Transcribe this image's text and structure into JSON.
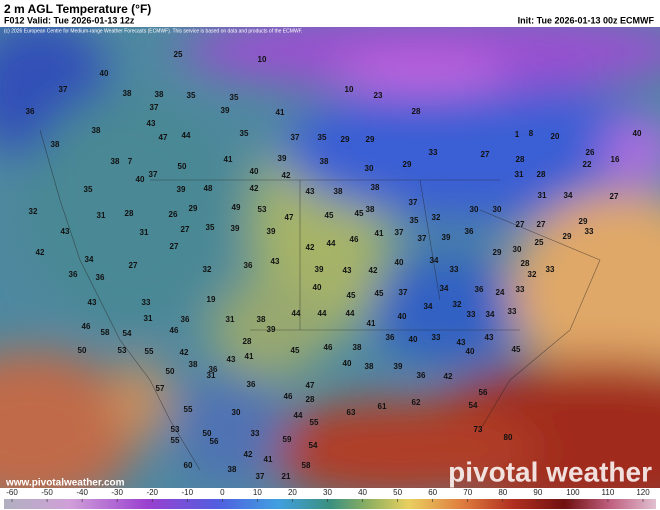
{
  "header": {
    "title": "2 m AGL Temperature (°F)",
    "valid": "F012 Valid: Tue 2026-01-13 12z",
    "init": "Init: Tue 2026-01-13 00z ECMWF",
    "credit": "(c) 2026 European Centre for Medium-range Weather Forecasts (ECMWF). This service is based on data and products of the ECMWF."
  },
  "map": {
    "temperatures": [
      25,
      10,
      40,
      37,
      38,
      38,
      35,
      35,
      10,
      23,
      28,
      37,
      36,
      43,
      39,
      38,
      47,
      44,
      41,
      35,
      37,
      35,
      29,
      29,
      33,
      27,
      28,
      20,
      26,
      40,
      1,
      8,
      38,
      38,
      7,
      37,
      50,
      41,
      40,
      39,
      42,
      38,
      30,
      29,
      31,
      28,
      22,
      16,
      35,
      40,
      39,
      48,
      42,
      43,
      38,
      38,
      37,
      31,
      34,
      27,
      32,
      31,
      28,
      26,
      29,
      49,
      53,
      47,
      45,
      45,
      38,
      35,
      32,
      30,
      30,
      27,
      27,
      29,
      33,
      43,
      31,
      27,
      35,
      39,
      39,
      42,
      44,
      46,
      41,
      37,
      37,
      39,
      36,
      25,
      29,
      42,
      34,
      27,
      27,
      32,
      36,
      43,
      39,
      43,
      42,
      40,
      34,
      33,
      29,
      30,
      28,
      36,
      36,
      40,
      45,
      45,
      37,
      34,
      36,
      24,
      33,
      32,
      33,
      43,
      33,
      31,
      36,
      19,
      31,
      38,
      44,
      44,
      44,
      41,
      40,
      34,
      32,
      33,
      34,
      33,
      46,
      58,
      54,
      46,
      28,
      39,
      50,
      53,
      55,
      42,
      41,
      45,
      46,
      38,
      36,
      40,
      33,
      43,
      40,
      43,
      45,
      50,
      38,
      36,
      43,
      36,
      47,
      40,
      38,
      39,
      36,
      42,
      57,
      31,
      46,
      28,
      63,
      61,
      62,
      54,
      56,
      55,
      30,
      44,
      55,
      53,
      33,
      50,
      59,
      73,
      55,
      56,
      42,
      41,
      54,
      60,
      38,
      37,
      21,
      58,
      80
    ]
  },
  "colorbar": {
    "ticks": [
      -60,
      -50,
      -40,
      -30,
      -20,
      -10,
      0,
      10,
      20,
      30,
      40,
      50,
      60,
      70,
      80,
      90,
      100,
      110,
      120
    ]
  },
  "footer": {
    "url": "www.pivotalweather.com",
    "brand": "pivotal weather"
  }
}
